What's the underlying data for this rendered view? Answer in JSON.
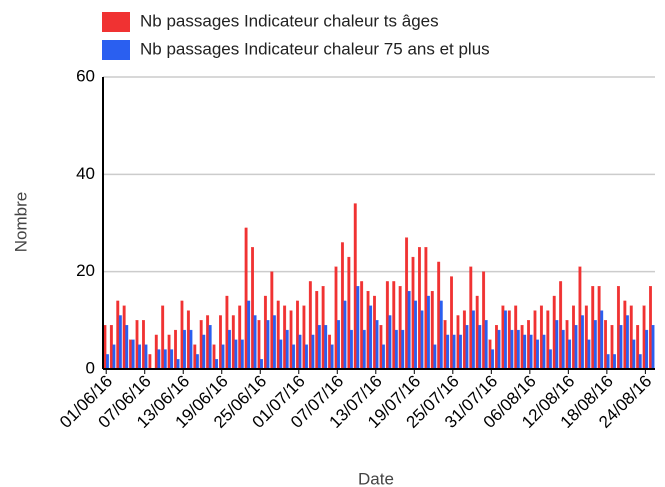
{
  "chart_data": {
    "type": "bar",
    "y_label": "Nombre",
    "x_label": "Date",
    "categories": [
      "01/06/16",
      null,
      null,
      null,
      null,
      null,
      "07/06/16",
      null,
      null,
      null,
      null,
      null,
      "13/06/16",
      null,
      null,
      null,
      null,
      null,
      "19/06/16",
      null,
      null,
      null,
      null,
      null,
      "25/06/16",
      null,
      null,
      null,
      null,
      null,
      "01/07/16",
      null,
      null,
      null,
      null,
      null,
      "07/07/16",
      null,
      null,
      null,
      null,
      null,
      "13/07/16",
      null,
      null,
      null,
      null,
      null,
      "19/07/16",
      null,
      null,
      null,
      null,
      null,
      "25/07/16",
      null,
      null,
      null,
      null,
      null,
      "31/07/16",
      null,
      null,
      null,
      null,
      null,
      "06/08/16",
      null,
      null,
      null,
      null,
      null,
      "12/08/16",
      null,
      null,
      null,
      null,
      null,
      "18/08/16",
      null,
      null,
      null,
      null,
      null,
      "24/08/16",
      null
    ],
    "series": [
      {
        "name": "Nb passages Indicateur chaleur ts âges",
        "color": "#f03232",
        "values": [
          9,
          9,
          14,
          13,
          6,
          10,
          10,
          3,
          7,
          13,
          7,
          8,
          14,
          12,
          5,
          10,
          11,
          5,
          11,
          15,
          11,
          13,
          29,
          25,
          10,
          15,
          20,
          14,
          13,
          12,
          14,
          13,
          18,
          16,
          17,
          7,
          21,
          26,
          23,
          34,
          18,
          16,
          15,
          9,
          18,
          18,
          17,
          27,
          23,
          25,
          25,
          16,
          22,
          10,
          19,
          11,
          12,
          21,
          15,
          20,
          6,
          9,
          13,
          12,
          13,
          9,
          10,
          12,
          13,
          12,
          15,
          18,
          10,
          13,
          21,
          13,
          17,
          17,
          10,
          9,
          17,
          14,
          13,
          9,
          13,
          17
        ]
      },
      {
        "name": "Nb passages Indicateur chaleur 75 ans et plus",
        "color": "#2a5ff0",
        "values": [
          3,
          5,
          11,
          9,
          6,
          5,
          5,
          0,
          4,
          4,
          4,
          2,
          8,
          8,
          3,
          7,
          9,
          2,
          5,
          8,
          6,
          6,
          14,
          11,
          2,
          10,
          11,
          6,
          8,
          5,
          7,
          5,
          7,
          9,
          9,
          5,
          10,
          14,
          8,
          17,
          8,
          13,
          10,
          5,
          11,
          8,
          8,
          16,
          14,
          12,
          15,
          5,
          14,
          7,
          7,
          7,
          9,
          12,
          9,
          10,
          4,
          8,
          12,
          8,
          8,
          7,
          7,
          6,
          7,
          4,
          10,
          8,
          6,
          9,
          11,
          6,
          10,
          12,
          3,
          3,
          9,
          11,
          6,
          3,
          8,
          9
        ]
      }
    ],
    "ylim": [
      0,
      60
    ],
    "yticks": [
      0,
      20,
      40,
      60
    ],
    "grid": true
  }
}
